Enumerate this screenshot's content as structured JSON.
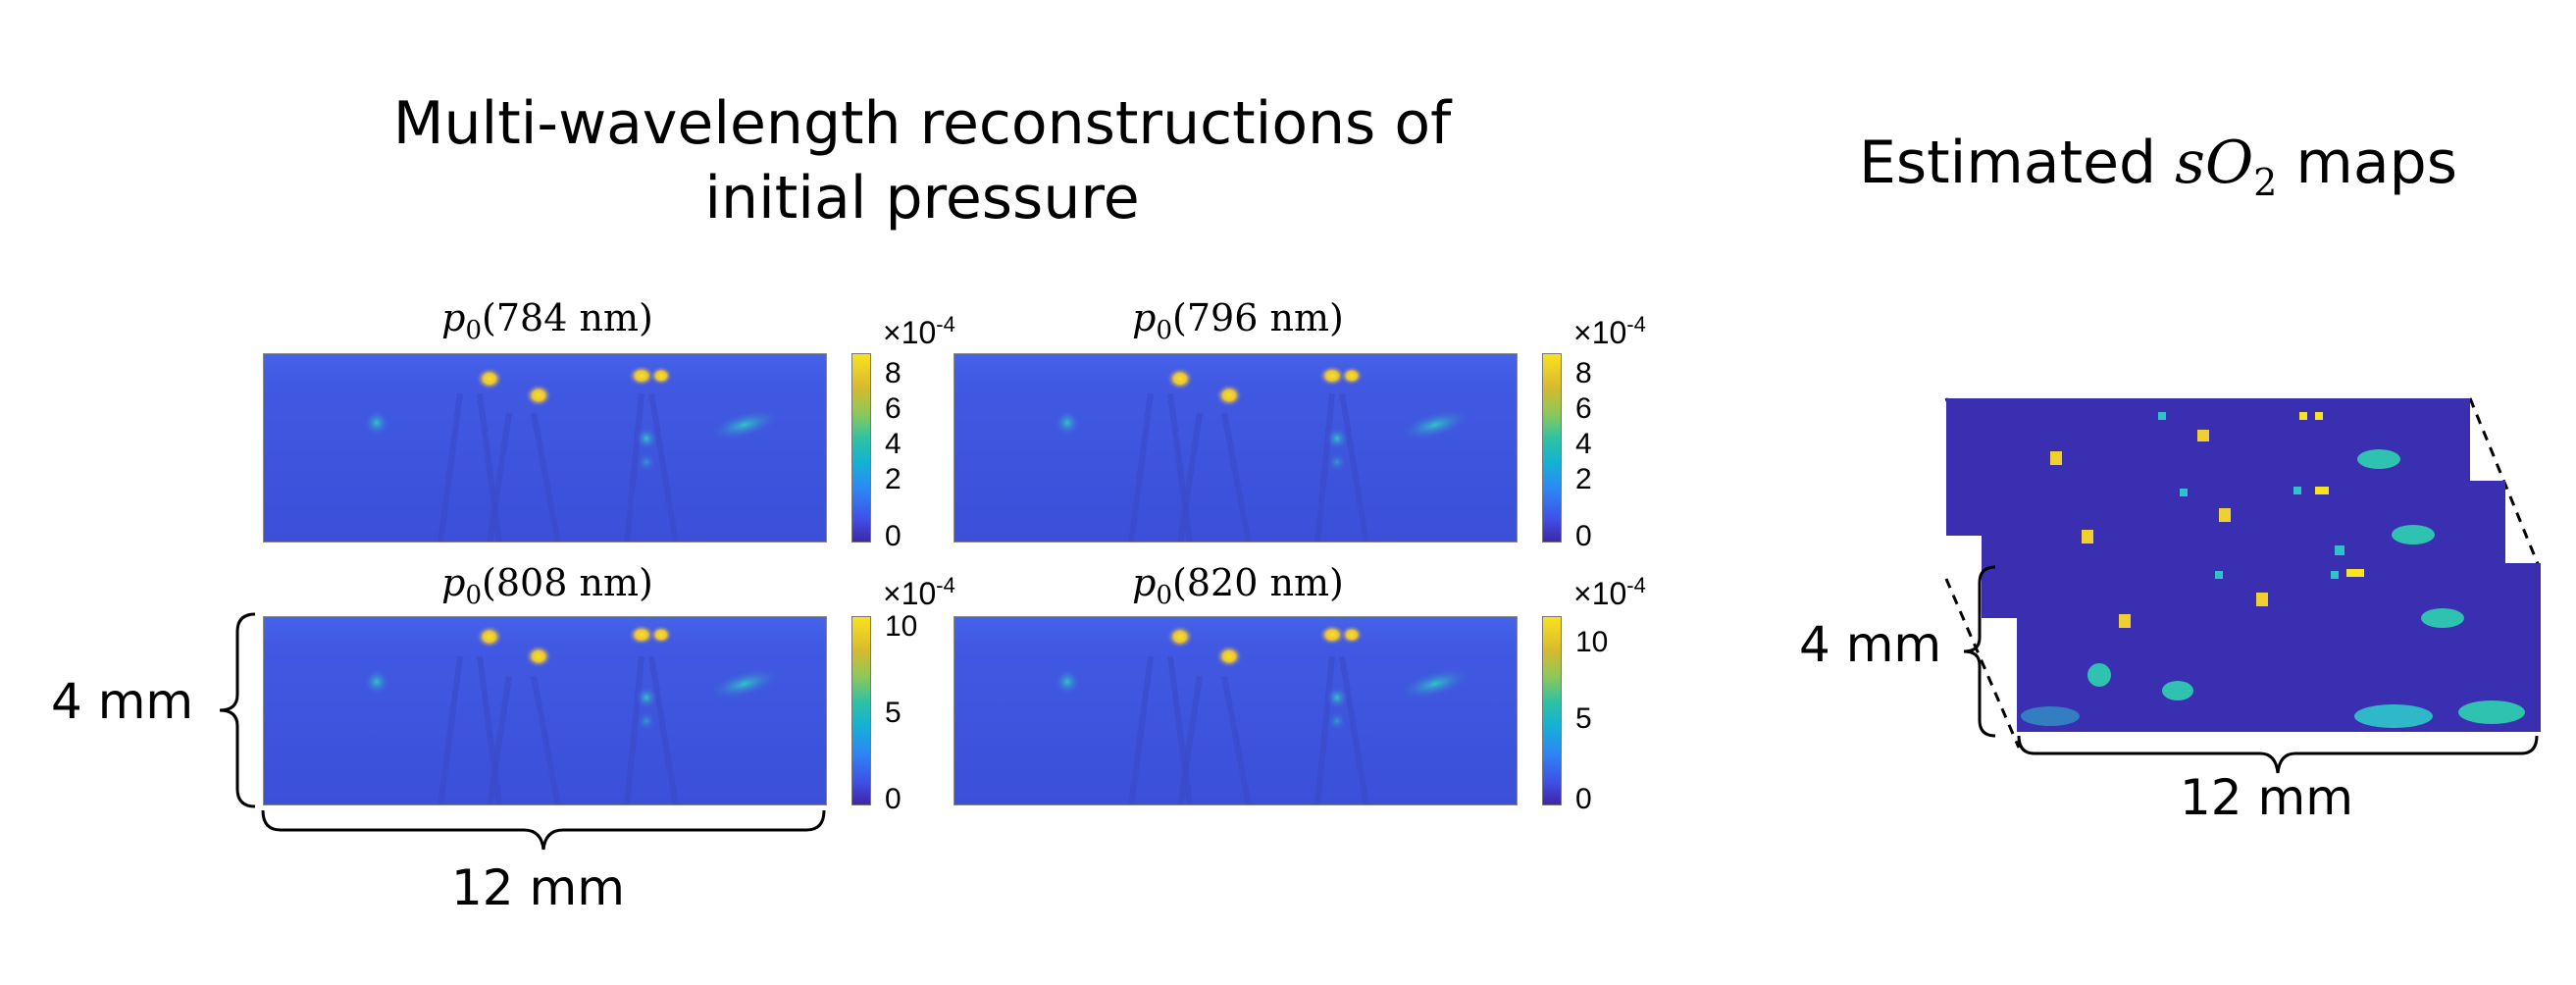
{
  "left_title": {
    "line1": "Multi-wavelength reconstructions of",
    "line2": "initial pressure"
  },
  "right_title": {
    "prefix": "Estimated ",
    "var_s": "s",
    "var_o": "O",
    "sub": "2",
    "suffix": " maps"
  },
  "panels": [
    {
      "symbol": "p",
      "sub": "0",
      "wavelength": "(784 nm)",
      "exponent_base": "×10",
      "exponent": "-4",
      "ticks": [
        "8",
        "6",
        "4",
        "2",
        "0"
      ]
    },
    {
      "symbol": "p",
      "sub": "0",
      "wavelength": "(796 nm)",
      "exponent_base": "×10",
      "exponent": "-4",
      "ticks": [
        "8",
        "6",
        "4",
        "2",
        "0"
      ]
    },
    {
      "symbol": "p",
      "sub": "0",
      "wavelength": "(808 nm)",
      "exponent_base": "×10",
      "exponent": "-4",
      "ticks": [
        "10",
        "5",
        "0"
      ]
    },
    {
      "symbol": "p",
      "sub": "0",
      "wavelength": "(820 nm)",
      "exponent_base": "×10",
      "exponent": "-4",
      "ticks": [
        "10",
        "5",
        "0"
      ]
    }
  ],
  "dimensions": {
    "height_left": "4 mm",
    "width_left": "12 mm",
    "height_right": "4 mm",
    "width_right": "12 mm"
  },
  "colors": {
    "background": "#3b2ca8",
    "hot": "#f9e220",
    "mid": "#2fc2a2"
  }
}
